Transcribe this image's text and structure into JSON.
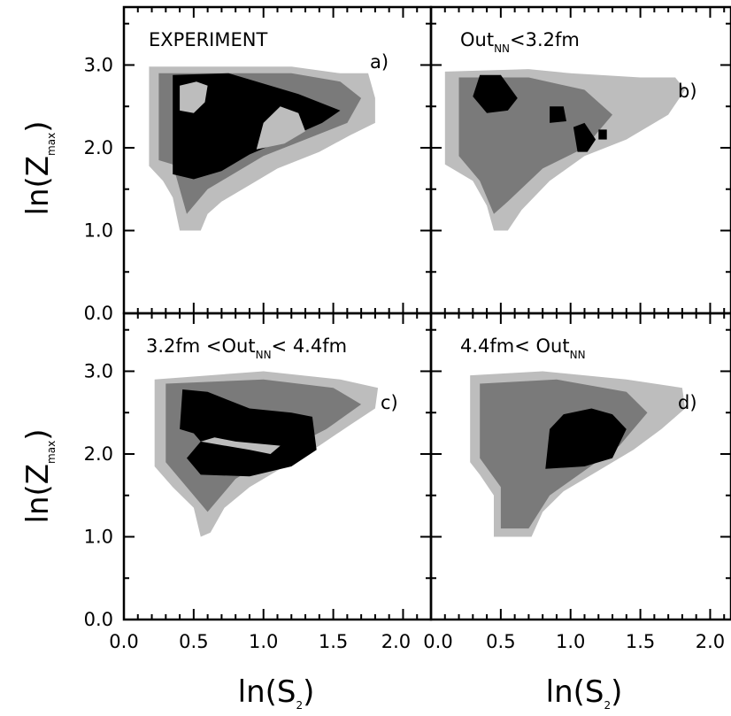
{
  "chart_data": {
    "type": "heatmap",
    "xlabel": "ln(S2)",
    "ylabel": "ln(Zmax)",
    "xlim": [
      0.0,
      2.2
    ],
    "ylim": [
      0.0,
      3.7
    ],
    "x_ticks": [
      "0.0",
      "0.5",
      "1.0",
      "1.5",
      "2.0"
    ],
    "x_ticks_right": [
      "0.0",
      "0.5",
      "1.0",
      "1.5",
      "2.0"
    ],
    "y_ticks": [
      "0.0",
      "1.0",
      "2.0",
      "3.0"
    ],
    "colors": {
      "low": "#bdbdbd",
      "mid": "#7a7a7a",
      "high": "#000000"
    },
    "panels": [
      {
        "id": "a",
        "label": "EXPERIMENT",
        "letter": "a)",
        "outer": [
          [
            0.18,
            1.78
          ],
          [
            0.18,
            2.98
          ],
          [
            1.2,
            2.98
          ],
          [
            1.55,
            2.9
          ],
          [
            1.75,
            2.9
          ],
          [
            1.8,
            2.6
          ],
          [
            1.8,
            2.3
          ],
          [
            1.62,
            2.15
          ],
          [
            1.4,
            1.95
          ],
          [
            1.1,
            1.75
          ],
          [
            0.9,
            1.55
          ],
          [
            0.7,
            1.35
          ],
          [
            0.6,
            1.2
          ],
          [
            0.55,
            1.0
          ],
          [
            0.4,
            1.0
          ],
          [
            0.35,
            1.4
          ],
          [
            0.28,
            1.6
          ]
        ],
        "mid": [
          [
            0.25,
            1.85
          ],
          [
            0.25,
            2.9
          ],
          [
            1.2,
            2.9
          ],
          [
            1.55,
            2.8
          ],
          [
            1.7,
            2.6
          ],
          [
            1.6,
            2.3
          ],
          [
            1.3,
            2.1
          ],
          [
            1.0,
            1.9
          ],
          [
            0.8,
            1.7
          ],
          [
            0.6,
            1.5
          ],
          [
            0.45,
            1.2
          ],
          [
            0.4,
            1.5
          ],
          [
            0.35,
            1.8
          ]
        ],
        "core": [
          [
            0.35,
            1.68
          ],
          [
            0.35,
            2.88
          ],
          [
            0.75,
            2.9
          ],
          [
            1.25,
            2.65
          ],
          [
            1.55,
            2.45
          ],
          [
            1.42,
            2.3
          ],
          [
            1.15,
            2.1
          ],
          [
            0.9,
            1.92
          ],
          [
            0.7,
            1.72
          ],
          [
            0.5,
            1.62
          ]
        ],
        "holes": [
          [
            [
              0.4,
              2.45
            ],
            [
              0.4,
              2.75
            ],
            [
              0.52,
              2.8
            ],
            [
              0.6,
              2.75
            ],
            [
              0.58,
              2.55
            ],
            [
              0.5,
              2.42
            ]
          ],
          [
            [
              0.95,
              1.98
            ],
            [
              1.0,
              2.3
            ],
            [
              1.12,
              2.5
            ],
            [
              1.25,
              2.42
            ],
            [
              1.3,
              2.2
            ],
            [
              1.15,
              2.05
            ]
          ]
        ]
      },
      {
        "id": "b",
        "label": "Out",
        "label_sub": "NN",
        "label_tail": "<3.2fm",
        "letter": "b)",
        "outer": [
          [
            0.1,
            1.8
          ],
          [
            0.1,
            2.92
          ],
          [
            0.7,
            2.95
          ],
          [
            1.0,
            2.9
          ],
          [
            1.5,
            2.85
          ],
          [
            1.75,
            2.85
          ],
          [
            1.82,
            2.7
          ],
          [
            1.7,
            2.4
          ],
          [
            1.4,
            2.1
          ],
          [
            1.1,
            1.9
          ],
          [
            0.85,
            1.6
          ],
          [
            0.65,
            1.25
          ],
          [
            0.55,
            1.0
          ],
          [
            0.45,
            1.0
          ],
          [
            0.4,
            1.3
          ],
          [
            0.3,
            1.6
          ]
        ],
        "mid": [
          [
            0.2,
            1.9
          ],
          [
            0.2,
            2.85
          ],
          [
            0.7,
            2.85
          ],
          [
            1.1,
            2.7
          ],
          [
            1.3,
            2.4
          ],
          [
            1.1,
            2.0
          ],
          [
            0.8,
            1.75
          ],
          [
            0.55,
            1.35
          ],
          [
            0.45,
            1.2
          ],
          [
            0.35,
            1.6
          ]
        ],
        "core": [
          [
            0.3,
            2.62
          ],
          [
            0.35,
            2.88
          ],
          [
            0.5,
            2.88
          ],
          [
            0.62,
            2.6
          ],
          [
            0.55,
            2.45
          ],
          [
            0.4,
            2.42
          ]
        ],
        "blobs": [
          [
            [
              0.85,
              2.3
            ],
            [
              0.85,
              2.5
            ],
            [
              0.95,
              2.5
            ],
            [
              0.97,
              2.32
            ]
          ],
          [
            [
              1.05,
              1.95
            ],
            [
              1.02,
              2.25
            ],
            [
              1.1,
              2.3
            ],
            [
              1.18,
              2.1
            ],
            [
              1.12,
              1.95
            ]
          ],
          [
            [
              1.2,
              2.1
            ],
            [
              1.2,
              2.22
            ],
            [
              1.26,
              2.22
            ],
            [
              1.26,
              2.1
            ]
          ]
        ]
      },
      {
        "id": "c",
        "label": "3.2fm <Out",
        "label_sub": "NN",
        "label_tail": "< 4.4fm",
        "letter": "c)",
        "outer": [
          [
            0.22,
            1.85
          ],
          [
            0.22,
            2.9
          ],
          [
            1.0,
            3.0
          ],
          [
            1.55,
            2.9
          ],
          [
            1.82,
            2.8
          ],
          [
            1.8,
            2.55
          ],
          [
            1.62,
            2.35
          ],
          [
            1.4,
            2.1
          ],
          [
            1.15,
            1.85
          ],
          [
            0.9,
            1.6
          ],
          [
            0.72,
            1.35
          ],
          [
            0.62,
            1.05
          ],
          [
            0.55,
            1.0
          ],
          [
            0.5,
            1.35
          ],
          [
            0.35,
            1.6
          ]
        ],
        "mid": [
          [
            0.3,
            1.9
          ],
          [
            0.3,
            2.85
          ],
          [
            1.0,
            2.9
          ],
          [
            1.5,
            2.8
          ],
          [
            1.7,
            2.6
          ],
          [
            1.45,
            2.3
          ],
          [
            1.1,
            2.0
          ],
          [
            0.8,
            1.7
          ],
          [
            0.6,
            1.3
          ],
          [
            0.45,
            1.6
          ]
        ],
        "core": [
          [
            0.4,
            2.3
          ],
          [
            0.42,
            2.78
          ],
          [
            0.6,
            2.75
          ],
          [
            0.9,
            2.55
          ],
          [
            1.2,
            2.5
          ],
          [
            1.35,
            2.45
          ],
          [
            1.38,
            2.05
          ],
          [
            1.2,
            1.85
          ],
          [
            0.9,
            1.73
          ],
          [
            0.55,
            1.75
          ],
          [
            0.45,
            1.95
          ],
          [
            0.55,
            2.15
          ],
          [
            0.5,
            2.25
          ]
        ],
        "holes": [
          [
            [
              0.55,
              2.15
            ],
            [
              0.9,
              2.05
            ],
            [
              1.05,
              2.0
            ],
            [
              1.12,
              2.1
            ],
            [
              0.8,
              2.15
            ],
            [
              0.65,
              2.2
            ]
          ]
        ]
      },
      {
        "id": "d",
        "label": "4.4fm< Out",
        "label_sub": "NN",
        "label_tail": "",
        "letter": "d)",
        "outer": [
          [
            0.28,
            1.9
          ],
          [
            0.28,
            2.95
          ],
          [
            0.8,
            3.0
          ],
          [
            1.4,
            2.9
          ],
          [
            1.8,
            2.8
          ],
          [
            1.82,
            2.55
          ],
          [
            1.65,
            2.3
          ],
          [
            1.45,
            2.05
          ],
          [
            1.2,
            1.8
          ],
          [
            0.95,
            1.55
          ],
          [
            0.8,
            1.3
          ],
          [
            0.72,
            1.0
          ],
          [
            0.45,
            1.0
          ],
          [
            0.45,
            1.5
          ],
          [
            0.35,
            1.75
          ]
        ],
        "mid": [
          [
            0.35,
            1.95
          ],
          [
            0.35,
            2.85
          ],
          [
            0.9,
            2.9
          ],
          [
            1.4,
            2.75
          ],
          [
            1.55,
            2.5
          ],
          [
            1.35,
            2.1
          ],
          [
            1.1,
            1.8
          ],
          [
            0.85,
            1.5
          ],
          [
            0.7,
            1.1
          ],
          [
            0.5,
            1.1
          ],
          [
            0.5,
            1.6
          ]
        ],
        "core": [
          [
            0.82,
            1.82
          ],
          [
            0.85,
            2.3
          ],
          [
            0.95,
            2.48
          ],
          [
            1.15,
            2.55
          ],
          [
            1.3,
            2.48
          ],
          [
            1.4,
            2.3
          ],
          [
            1.3,
            1.95
          ],
          [
            1.1,
            1.85
          ]
        ]
      }
    ]
  }
}
